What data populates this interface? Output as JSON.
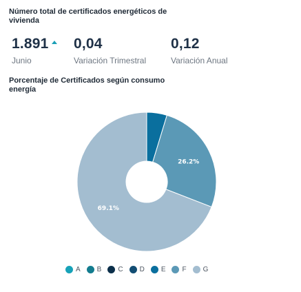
{
  "kpi_section": {
    "title": "Número total de certificados energéticos de vivienda",
    "items": [
      {
        "value": "1.891",
        "label": "Junio",
        "trend": "up"
      },
      {
        "value": "0,04",
        "label": "Variación Trimestral"
      },
      {
        "value": "0,12",
        "label": "Variación Anual"
      }
    ],
    "trend_color": "#1a9fb6"
  },
  "chart_data": {
    "type": "pie",
    "title": "Porcentaje de Certificados según consumo energía",
    "donut": true,
    "categories": [
      "A",
      "B",
      "C",
      "D",
      "E",
      "F",
      "G"
    ],
    "values": [
      0,
      0,
      0,
      0,
      4.7,
      26.2,
      69.1
    ],
    "colors": [
      "#17a2b8",
      "#137c8f",
      "#0b2f4a",
      "#124d73",
      "#0a6f9e",
      "#5b99b6",
      "#a3bdd0"
    ],
    "data_labels": [
      "",
      "",
      "",
      "",
      "",
      "26.2%",
      "69.1%"
    ],
    "legend_position": "bottom"
  }
}
